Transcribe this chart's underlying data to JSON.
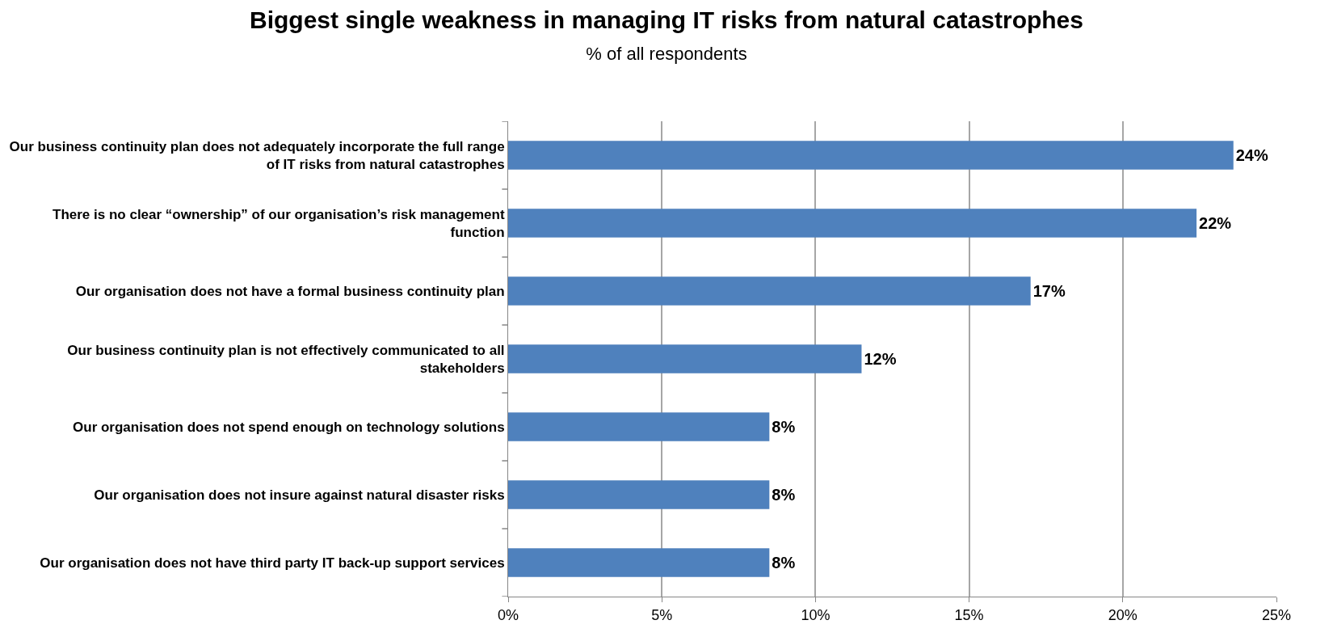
{
  "chart_data": {
    "type": "bar",
    "orientation": "horizontal",
    "title": "Biggest single weakness in managing IT risks from natural catastrophes",
    "subtitle": "% of all respondents",
    "categories": [
      "Our business continuity plan does not adequately incorporate the full range of IT risks from natural catastrophes",
      "There is no clear “ownership” of our organisation’s risk management function",
      "Our organisation does not have a formal business continuity plan",
      "Our business continuity plan is not effectively communicated to all stakeholders",
      "Our organisation does not spend enough on technology solutions",
      "Our organisation does not insure against natural disaster risks",
      "Our organisation does not have third party IT back-up support services"
    ],
    "values": [
      23.6,
      22.4,
      17.0,
      11.5,
      8.5,
      8.5,
      8.5
    ],
    "value_labels": [
      "24%",
      "22%",
      "17%",
      "12%",
      "8%",
      "8%",
      "8%"
    ],
    "color": "#4f81bd",
    "xlim": [
      0,
      25
    ],
    "xticks": [
      {
        "value": 0,
        "label": "0%"
      },
      {
        "value": 5,
        "label": "5%"
      },
      {
        "value": 10,
        "label": "10%"
      },
      {
        "value": 15,
        "label": "15%"
      },
      {
        "value": 20,
        "label": "20%"
      },
      {
        "value": 25,
        "label": "25%"
      }
    ],
    "grid": "x"
  }
}
